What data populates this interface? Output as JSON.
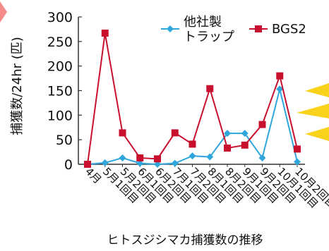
{
  "chart_data": {
    "type": "line",
    "categories": [
      "4月",
      "5月1回目",
      "5月2回目",
      "6月1回目",
      "6月2回目",
      "7月1回目",
      "7月2回目",
      "8月1回目",
      "8月2回目",
      "9月1回目",
      "9月2回目",
      "10月1回目",
      "10月2回目"
    ],
    "series": [
      {
        "name": "他社製\nトラップ",
        "name_lines": [
          "他社製",
          "トラップ"
        ],
        "color": "#2fa7dc",
        "marker": "diamond",
        "values": [
          0,
          3,
          13,
          2,
          0,
          2,
          17,
          15,
          63,
          63,
          13,
          153,
          5
        ]
      },
      {
        "name": "BGS2",
        "name_lines": [
          "BGS2"
        ],
        "color": "#c8102e",
        "marker": "square",
        "values": [
          0,
          267,
          64,
          13,
          11,
          64,
          41,
          154,
          33,
          39,
          81,
          180,
          31
        ]
      }
    ],
    "ylabel": "捕獲数/24hr (匹)",
    "ylim": [
      0,
      300
    ],
    "yticks": [
      0,
      50,
      100,
      150,
      200,
      250,
      300
    ],
    "grid": false,
    "legend_position": "top-right",
    "caption": "ヒトスジシマカ捕獲数の推移"
  },
  "decor": {
    "left_arrow_color": "#f58a8a",
    "right_burst_color": "#f8d21b"
  }
}
